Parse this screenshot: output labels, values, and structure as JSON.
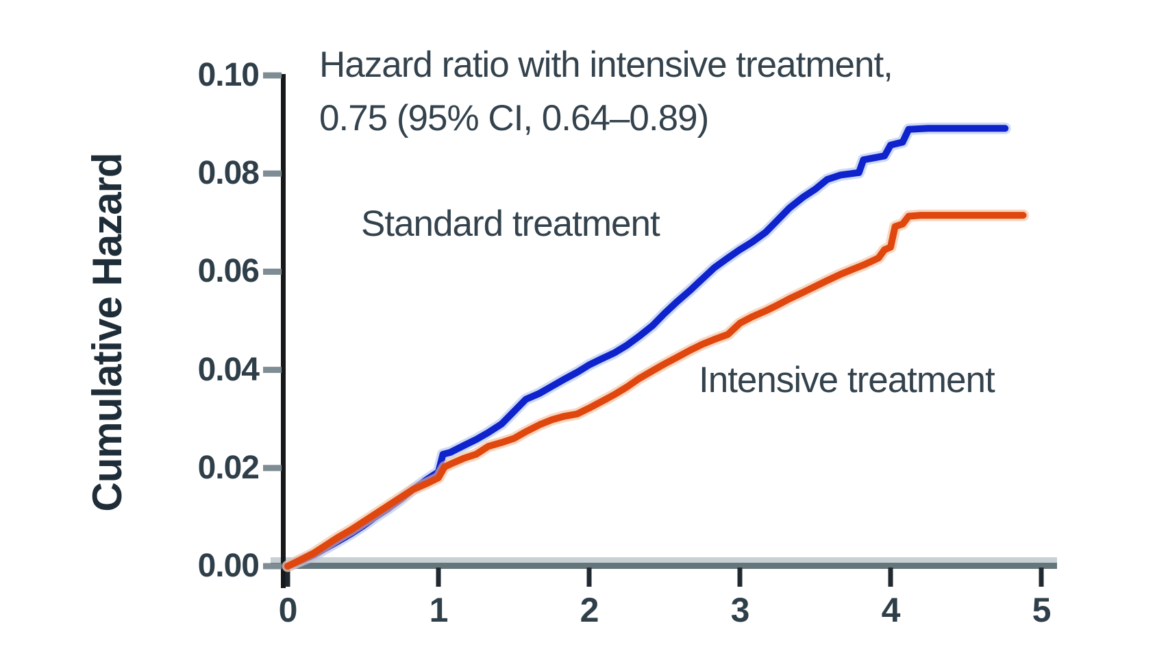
{
  "figure": {
    "background": "#ffffff",
    "annotation": {
      "line1": "Hazard ratio with intensive treatment,",
      "line2": "0.75 (95% CI, 0.64–0.89)"
    },
    "y_axis_title": "Cumulative Hazard"
  },
  "chart_data": {
    "type": "line",
    "title": "",
    "xlabel": "",
    "ylabel": "Cumulative Hazard",
    "xlim": [
      0,
      5
    ],
    "ylim": [
      0,
      0.1
    ],
    "grid": false,
    "legend_position": "inline-labels-on-plot",
    "x_ticks": [
      "0",
      "1",
      "2",
      "3",
      "4",
      "5"
    ],
    "y_ticks": [
      "0.00",
      "0.02",
      "0.04",
      "0.06",
      "0.08",
      "0.10"
    ],
    "annotation_text": "Hazard ratio with intensive treatment, 0.75 (95% CI, 0.64–0.89)",
    "series": [
      {
        "name": "Standard treatment",
        "color": "#0f23cd",
        "halo_color": "#aec1f0",
        "points": [
          [
            0,
            0
          ],
          [
            0.08,
            0.001
          ],
          [
            0.17,
            0.0022
          ],
          [
            0.25,
            0.0036
          ],
          [
            0.33,
            0.005
          ],
          [
            0.42,
            0.0066
          ],
          [
            0.5,
            0.0082
          ],
          [
            0.58,
            0.01
          ],
          [
            0.67,
            0.0118
          ],
          [
            0.75,
            0.0136
          ],
          [
            0.83,
            0.0156
          ],
          [
            0.92,
            0.0176
          ],
          [
            1.0,
            0.0192
          ],
          [
            1.03,
            0.0228
          ],
          [
            1.08,
            0.0232
          ],
          [
            1.17,
            0.0246
          ],
          [
            1.25,
            0.0258
          ],
          [
            1.33,
            0.0272
          ],
          [
            1.42,
            0.029
          ],
          [
            1.5,
            0.0315
          ],
          [
            1.58,
            0.034
          ],
          [
            1.67,
            0.0352
          ],
          [
            1.75,
            0.0366
          ],
          [
            1.83,
            0.038
          ],
          [
            1.92,
            0.0395
          ],
          [
            2.0,
            0.041
          ],
          [
            2.08,
            0.0422
          ],
          [
            2.17,
            0.0435
          ],
          [
            2.25,
            0.045
          ],
          [
            2.33,
            0.0468
          ],
          [
            2.42,
            0.049
          ],
          [
            2.5,
            0.0515
          ],
          [
            2.58,
            0.0538
          ],
          [
            2.67,
            0.0562
          ],
          [
            2.75,
            0.0585
          ],
          [
            2.83,
            0.0608
          ],
          [
            2.92,
            0.0628
          ],
          [
            3.0,
            0.0645
          ],
          [
            3.08,
            0.066
          ],
          [
            3.17,
            0.068
          ],
          [
            3.25,
            0.0705
          ],
          [
            3.33,
            0.073
          ],
          [
            3.42,
            0.0752
          ],
          [
            3.5,
            0.0768
          ],
          [
            3.58,
            0.0788
          ],
          [
            3.67,
            0.0797
          ],
          [
            3.79,
            0.0802
          ],
          [
            3.82,
            0.0828
          ],
          [
            3.96,
            0.0836
          ],
          [
            4.0,
            0.0858
          ],
          [
            4.08,
            0.0864
          ],
          [
            4.12,
            0.089
          ],
          [
            4.25,
            0.0892
          ],
          [
            4.76,
            0.0892
          ]
        ]
      },
      {
        "name": "Intensive treatment",
        "color": "#e0470f",
        "halo_color": "#f4bc97",
        "points": [
          [
            0,
            0
          ],
          [
            0.08,
            0.0012
          ],
          [
            0.17,
            0.0026
          ],
          [
            0.25,
            0.0042
          ],
          [
            0.33,
            0.0058
          ],
          [
            0.42,
            0.0074
          ],
          [
            0.5,
            0.009
          ],
          [
            0.58,
            0.0106
          ],
          [
            0.67,
            0.0124
          ],
          [
            0.75,
            0.014
          ],
          [
            0.83,
            0.0156
          ],
          [
            0.92,
            0.0168
          ],
          [
            1.0,
            0.018
          ],
          [
            1.04,
            0.0202
          ],
          [
            1.08,
            0.0208
          ],
          [
            1.17,
            0.022
          ],
          [
            1.25,
            0.0228
          ],
          [
            1.33,
            0.0244
          ],
          [
            1.42,
            0.0252
          ],
          [
            1.5,
            0.026
          ],
          [
            1.58,
            0.0274
          ],
          [
            1.67,
            0.0288
          ],
          [
            1.75,
            0.0298
          ],
          [
            1.83,
            0.0305
          ],
          [
            1.92,
            0.031
          ],
          [
            2.0,
            0.0322
          ],
          [
            2.08,
            0.0335
          ],
          [
            2.17,
            0.035
          ],
          [
            2.25,
            0.0365
          ],
          [
            2.33,
            0.0382
          ],
          [
            2.42,
            0.0398
          ],
          [
            2.5,
            0.0412
          ],
          [
            2.58,
            0.0425
          ],
          [
            2.67,
            0.044
          ],
          [
            2.75,
            0.0452
          ],
          [
            2.83,
            0.0462
          ],
          [
            2.92,
            0.0472
          ],
          [
            3.0,
            0.0495
          ],
          [
            3.08,
            0.0508
          ],
          [
            3.17,
            0.052
          ],
          [
            3.25,
            0.0532
          ],
          [
            3.33,
            0.0545
          ],
          [
            3.42,
            0.0558
          ],
          [
            3.5,
            0.057
          ],
          [
            3.58,
            0.0582
          ],
          [
            3.67,
            0.0595
          ],
          [
            3.75,
            0.0605
          ],
          [
            3.83,
            0.0615
          ],
          [
            3.92,
            0.0628
          ],
          [
            3.96,
            0.0645
          ],
          [
            4.0,
            0.065
          ],
          [
            4.03,
            0.0692
          ],
          [
            4.08,
            0.0697
          ],
          [
            4.12,
            0.0713
          ],
          [
            4.2,
            0.0715
          ],
          [
            4.88,
            0.0715
          ]
        ]
      }
    ]
  },
  "colors": {
    "text": "#33424c",
    "tick_text": "#2f3f49",
    "y_axis_line": "#17181a",
    "x_axis_dark": "#65757c",
    "x_axis_light": "#c7d0d4",
    "y_tick_mark": "#7e8d94",
    "x_tick_mark": "#212930"
  }
}
